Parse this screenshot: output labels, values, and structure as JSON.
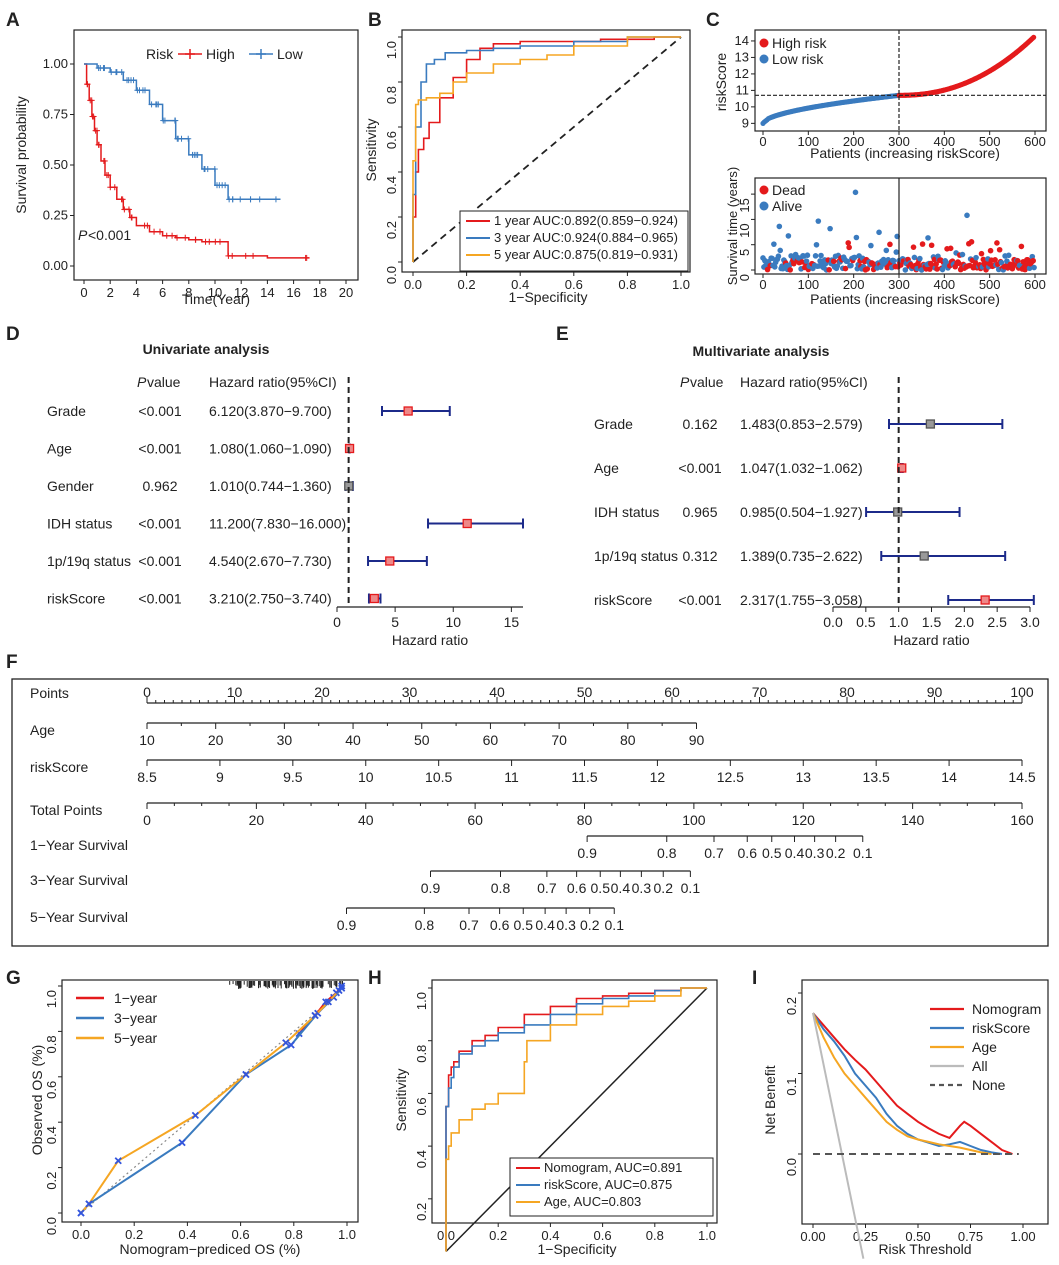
{
  "colors": {
    "red": "#e41a1c",
    "blue": "#3a7bbf",
    "orange": "#f5a623",
    "navy": "#1c2a8a",
    "gray": "#bbbbbb",
    "dark": "#222222"
  },
  "panels": {
    "A": "A",
    "B": "B",
    "C": "C",
    "D": "D",
    "E": "E",
    "F": "F",
    "G": "G",
    "H": "H",
    "I": "I"
  },
  "chart_data": [
    {
      "id": "A",
      "type": "line",
      "subtype": "kaplan-meier",
      "xlabel": "Time(Year)",
      "ylabel": "Survival probability",
      "xticks": [
        "0",
        "2",
        "4",
        "6",
        "8",
        "10",
        "12",
        "14",
        "16",
        "18",
        "20"
      ],
      "yticks": [
        "0.00",
        "0.25",
        "0.50",
        "0.75",
        "1.00"
      ],
      "xlim": [
        0,
        20
      ],
      "ylim": [
        0,
        1
      ],
      "legend_title": "Risk",
      "pvalue_label": "P",
      "pvalue_rest": "<0.001",
      "series": [
        {
          "name": "High",
          "color": "#e41a1c",
          "x": [
            0,
            0.2,
            0.4,
            0.6,
            0.8,
            1,
            1.3,
            1.6,
            2,
            2.5,
            3,
            3.5,
            4,
            5,
            6,
            7,
            8,
            9,
            10,
            11,
            12,
            14,
            17.2
          ],
          "y": [
            1,
            0.9,
            0.82,
            0.74,
            0.67,
            0.6,
            0.52,
            0.45,
            0.39,
            0.33,
            0.28,
            0.24,
            0.2,
            0.17,
            0.15,
            0.14,
            0.13,
            0.12,
            0.12,
            0.05,
            0.05,
            0.04,
            0.04
          ]
        },
        {
          "name": "Low",
          "color": "#3a7bbf",
          "x": [
            0,
            1,
            2,
            3,
            4,
            5,
            6,
            7,
            8,
            9,
            10,
            11,
            12,
            15
          ],
          "y": [
            1,
            0.98,
            0.96,
            0.92,
            0.87,
            0.8,
            0.72,
            0.63,
            0.55,
            0.48,
            0.4,
            0.33,
            0.33,
            0.33
          ]
        }
      ]
    },
    {
      "id": "B",
      "type": "line",
      "subtype": "roc",
      "xlabel": "1−Specificity",
      "ylabel": "Sensitivity",
      "xticks": [
        "0.0",
        "0.2",
        "0.4",
        "0.6",
        "0.8",
        "1.0"
      ],
      "yticks": [
        "0.0",
        "0.2",
        "0.4",
        "0.6",
        "0.8",
        "1.0"
      ],
      "series": [
        {
          "name": "1 year AUC:0.892(0.859−0.924)",
          "color": "#e41a1c",
          "x": [
            0,
            0.01,
            0.02,
            0.04,
            0.06,
            0.1,
            0.15,
            0.2,
            0.25,
            0.3,
            0.4,
            0.5,
            0.7,
            0.9,
            1
          ],
          "y": [
            0,
            0.2,
            0.4,
            0.5,
            0.55,
            0.62,
            0.73,
            0.82,
            0.9,
            0.95,
            0.97,
            0.98,
            0.98,
            0.99,
            1
          ]
        },
        {
          "name": "3 year AUC:0.924(0.884−0.965)",
          "color": "#3a7bbf",
          "x": [
            0,
            0.01,
            0.03,
            0.05,
            0.08,
            0.12,
            0.2,
            0.3,
            0.4,
            0.6,
            0.8,
            1
          ],
          "y": [
            0,
            0.3,
            0.6,
            0.8,
            0.88,
            0.9,
            0.93,
            0.94,
            0.95,
            0.96,
            0.98,
            1
          ]
        },
        {
          "name": "5 year AUC:0.875(0.819−0.931)",
          "color": "#f5a623",
          "x": [
            0,
            0.01,
            0.02,
            0.05,
            0.1,
            0.15,
            0.2,
            0.3,
            0.4,
            0.5,
            0.6,
            0.8,
            1
          ],
          "y": [
            0,
            0.45,
            0.7,
            0.72,
            0.73,
            0.75,
            0.8,
            0.84,
            0.88,
            0.9,
            0.92,
            0.96,
            1
          ]
        }
      ]
    },
    {
      "id": "C1",
      "type": "scatter",
      "ylabel": "riskScore",
      "xlabel": "Patients (increasing riskScore)",
      "xticks": [
        "0",
        "100",
        "200",
        "300",
        "400",
        "500",
        "600"
      ],
      "yticks": [
        "9",
        "10",
        "11",
        "12",
        "13",
        "14"
      ],
      "cutoff_x": 300,
      "cutoff_y": 10.7,
      "n": 600,
      "series": [
        {
          "name": "High risk",
          "color": "#e41a1c"
        },
        {
          "name": "Low risk",
          "color": "#3a7bbf"
        }
      ]
    },
    {
      "id": "C2",
      "type": "scatter",
      "ylabel": "Survival time (years)",
      "xlabel": "Patients (increasing riskScore)",
      "xticks": [
        "0",
        "100",
        "200",
        "300",
        "400",
        "500",
        "600"
      ],
      "yticks": [
        "0",
        "5",
        "10",
        "15"
      ],
      "cutoff_x": 300,
      "series": [
        {
          "name": "Dead",
          "color": "#e41a1c"
        },
        {
          "name": "Alive",
          "color": "#3a7bbf"
        }
      ]
    },
    {
      "id": "D",
      "type": "forest",
      "title": "Univariate analysis",
      "col_p": "P",
      "col_p_rest": " value",
      "col_hr": "Hazard ratio(95%CI)",
      "xlabel": "Hazard ratio",
      "xticks": [
        "0",
        "5",
        "10",
        "15"
      ],
      "xlim": [
        0,
        16
      ],
      "rows": [
        {
          "label": "Grade",
          "p": "<0.001",
          "hr_text": "6.120(3.870−9.700)",
          "hr": 6.12,
          "lo": 3.87,
          "hi": 9.7
        },
        {
          "label": "Age",
          "p": "<0.001",
          "hr_text": "1.080(1.060−1.090)",
          "hr": 1.08,
          "lo": 1.06,
          "hi": 1.09
        },
        {
          "label": "Gender",
          "p": "0.962",
          "hr_text": "1.010(0.744−1.360)",
          "hr": 1.01,
          "lo": 0.744,
          "hi": 1.36
        },
        {
          "label": "IDH status",
          "p": "<0.001",
          "hr_text": "11.200(7.830−16.000)",
          "hr": 11.2,
          "lo": 7.83,
          "hi": 16.0
        },
        {
          "label": "1p/19q status",
          "p": "<0.001",
          "hr_text": "4.540(2.670−7.730)",
          "hr": 4.54,
          "lo": 2.67,
          "hi": 7.73
        },
        {
          "label": "riskScore",
          "p": "<0.001",
          "hr_text": "3.210(2.750−3.740)",
          "hr": 3.21,
          "lo": 2.75,
          "hi": 3.74
        }
      ]
    },
    {
      "id": "E",
      "type": "forest",
      "title": "Multivariate analysis",
      "col_p": "P",
      "col_p_rest": " value",
      "col_hr": "Hazard ratio(95%CI)",
      "xlabel": "Hazard ratio",
      "xticks": [
        "0.0",
        "0.5",
        "1.0",
        "1.5",
        "2.0",
        "2.5",
        "3.0"
      ],
      "xlim": [
        0,
        3.0
      ],
      "rows": [
        {
          "label": "Grade",
          "p": "0.162",
          "hr_text": "1.483(0.853−2.579)",
          "hr": 1.483,
          "lo": 0.853,
          "hi": 2.579
        },
        {
          "label": "Age",
          "p": "<0.001",
          "hr_text": "1.047(1.032−1.062)",
          "hr": 1.047,
          "lo": 1.032,
          "hi": 1.062
        },
        {
          "label": "IDH status",
          "p": "0.965",
          "hr_text": "0.985(0.504−1.927)",
          "hr": 0.985,
          "lo": 0.504,
          "hi": 1.927
        },
        {
          "label": "1p/19q status",
          "p": "0.312",
          "hr_text": "1.389(0.735−2.622)",
          "hr": 1.389,
          "lo": 0.735,
          "hi": 2.622
        },
        {
          "label": "riskScore",
          "p": "<0.001",
          "hr_text": "2.317(1.755−3.058)",
          "hr": 2.317,
          "lo": 1.755,
          "hi": 3.058
        }
      ]
    },
    {
      "id": "F",
      "type": "nomogram",
      "rows": [
        {
          "label": "Points",
          "ticks": [
            "0",
            "10",
            "20",
            "30",
            "40",
            "50",
            "60",
            "70",
            "80",
            "90",
            "100"
          ],
          "start": 0,
          "end": 100
        },
        {
          "label": "Age",
          "ticks": [
            "10",
            "20",
            "30",
            "40",
            "50",
            "60",
            "70",
            "80",
            "90"
          ],
          "start": 0,
          "end": 62.8
        },
        {
          "label": "riskScore",
          "ticks": [
            "8.5",
            "9",
            "9.5",
            "10",
            "10.5",
            "11",
            "11.5",
            "12",
            "12.5",
            "13",
            "13.5",
            "14",
            "14.5"
          ],
          "start": 0,
          "end": 100
        },
        {
          "label": "Total Points",
          "ticks": [
            "0",
            "20",
            "40",
            "60",
            "80",
            "100",
            "120",
            "140",
            "160"
          ],
          "start": 0,
          "end": 100
        },
        {
          "label": "1−Year Survival",
          "ticks": [
            "0.9",
            "0.8",
            "0.7",
            "0.6",
            "0.5",
            "0.4",
            "0.3",
            "0.2",
            "0.1"
          ],
          "pos": [
            50.3,
            59.4,
            64.8,
            68.6,
            71.4,
            74.0,
            76.3,
            78.7,
            81.8
          ]
        },
        {
          "label": "3−Year Survival",
          "ticks": [
            "0.9",
            "0.8",
            "0.7",
            "0.6",
            "0.5",
            "0.4",
            "0.3",
            "0.2",
            "0.1"
          ],
          "pos": [
            32.4,
            40.4,
            45.7,
            49.1,
            51.8,
            54.1,
            56.5,
            59.0,
            62.1
          ]
        },
        {
          "label": "5−Year Survival",
          "ticks": [
            "0.9",
            "0.8",
            "0.7",
            "0.6",
            "0.5",
            "0.4",
            "0.3",
            "0.2",
            "0.1"
          ],
          "pos": [
            22.8,
            31.7,
            36.8,
            40.3,
            43.0,
            45.5,
            47.9,
            50.6,
            53.4
          ]
        }
      ]
    },
    {
      "id": "G",
      "type": "line",
      "subtype": "calibration",
      "xlabel": "Nomogram−prediced OS (%)",
      "ylabel": "Observed OS (%)",
      "xticks": [
        "0.0",
        "0.2",
        "0.4",
        "0.6",
        "0.8",
        "1.0"
      ],
      "yticks": [
        "0.0",
        "0.2",
        "0.4",
        "0.6",
        "0.8",
        "1.0"
      ],
      "series": [
        {
          "name": "1−year",
          "color": "#e41a1c",
          "x": [
            0.82,
            0.88,
            0.92,
            0.96,
            0.98
          ],
          "y": [
            0.79,
            0.87,
            0.93,
            0.97,
            1.0
          ]
        },
        {
          "name": "3−year",
          "color": "#3a7bbf",
          "x": [
            0,
            0.03,
            0.38,
            0.62,
            0.79,
            0.89,
            0.95,
            0.98
          ],
          "y": [
            0,
            0.04,
            0.31,
            0.61,
            0.74,
            0.88,
            0.95,
            0.99
          ]
        },
        {
          "name": "5−year",
          "color": "#f5a623",
          "x": [
            0,
            0.03,
            0.14,
            0.43,
            0.62,
            0.77,
            0.88,
            0.93,
            0.97
          ],
          "y": [
            0,
            0.04,
            0.23,
            0.43,
            0.61,
            0.75,
            0.87,
            0.93,
            0.98
          ]
        }
      ]
    },
    {
      "id": "H",
      "type": "line",
      "subtype": "roc",
      "xlabel": "1−Specificity",
      "ylabel": "Sensitivity",
      "xticks": [
        "0.0",
        "0.2",
        "0.4",
        "0.6",
        "0.8",
        "1.0"
      ],
      "yticks": [
        "0.2",
        "0.4",
        "0.6",
        "0.8",
        "1.0"
      ],
      "series": [
        {
          "name": "Nomogram, AUC=0.891",
          "color": "#e41a1c",
          "x": [
            0,
            0.01,
            0.02,
            0.03,
            0.05,
            0.1,
            0.15,
            0.2,
            0.3,
            0.4,
            0.5,
            0.6,
            0.7,
            0.8,
            0.9,
            1
          ],
          "y": [
            0,
            0.55,
            0.67,
            0.7,
            0.72,
            0.76,
            0.8,
            0.82,
            0.85,
            0.9,
            0.93,
            0.96,
            0.97,
            0.98,
            0.99,
            1
          ]
        },
        {
          "name": "riskScore, AUC=0.875",
          "color": "#3a7bbf",
          "x": [
            0,
            0.01,
            0.02,
            0.03,
            0.05,
            0.1,
            0.15,
            0.2,
            0.3,
            0.4,
            0.5,
            0.6,
            0.7,
            0.8,
            0.9,
            1
          ],
          "y": [
            0,
            0.55,
            0.62,
            0.66,
            0.7,
            0.75,
            0.78,
            0.8,
            0.83,
            0.86,
            0.9,
            0.94,
            0.96,
            0.97,
            0.99,
            1
          ]
        },
        {
          "name": "Age, AUC=0.803",
          "color": "#f5a623",
          "x": [
            0,
            0.01,
            0.02,
            0.05,
            0.1,
            0.15,
            0.2,
            0.3,
            0.31,
            0.4,
            0.5,
            0.6,
            0.7,
            0.8,
            0.9,
            1
          ],
          "y": [
            0,
            0.35,
            0.4,
            0.45,
            0.5,
            0.54,
            0.56,
            0.6,
            0.72,
            0.8,
            0.86,
            0.9,
            0.93,
            0.95,
            0.97,
            1
          ]
        }
      ]
    },
    {
      "id": "I",
      "type": "line",
      "subtype": "decision-curve",
      "xlabel": "Risk Threshold",
      "ylabel": "Net Benefit",
      "xticks": [
        "0.00",
        "0.25",
        "0.50",
        "0.75",
        "1.00"
      ],
      "yticks": [
        "0.0",
        "0.1",
        "0.2"
      ],
      "series": [
        {
          "name": "Nomogram",
          "color": "#e41a1c",
          "x": [
            0,
            0.05,
            0.1,
            0.15,
            0.2,
            0.25,
            0.3,
            0.35,
            0.4,
            0.45,
            0.5,
            0.55,
            0.6,
            0.65,
            0.7,
            0.72,
            0.75,
            0.8,
            0.85,
            0.9,
            0.95
          ],
          "y": [
            0.175,
            0.16,
            0.145,
            0.13,
            0.117,
            0.105,
            0.09,
            0.075,
            0.06,
            0.05,
            0.04,
            0.032,
            0.025,
            0.02,
            0.035,
            0.04,
            0.035,
            0.025,
            0.015,
            0.005,
            0
          ]
        },
        {
          "name": "riskScore",
          "color": "#3a7bbf",
          "x": [
            0,
            0.05,
            0.1,
            0.15,
            0.2,
            0.25,
            0.3,
            0.35,
            0.4,
            0.45,
            0.5,
            0.55,
            0.6,
            0.65,
            0.7,
            0.75,
            0.8,
            0.85,
            0.9
          ],
          "y": [
            0.175,
            0.155,
            0.14,
            0.122,
            0.1,
            0.085,
            0.07,
            0.05,
            0.035,
            0.025,
            0.018,
            0.014,
            0.01,
            0.012,
            0.015,
            0.01,
            0.005,
            0.002,
            0
          ]
        },
        {
          "name": "Age",
          "color": "#f5a623",
          "x": [
            0,
            0.05,
            0.1,
            0.15,
            0.2,
            0.25,
            0.3,
            0.35,
            0.4,
            0.45,
            0.5,
            0.55,
            0.6,
            0.65,
            0.7,
            0.75,
            0.8,
            0.85
          ],
          "y": [
            0.175,
            0.145,
            0.12,
            0.1,
            0.085,
            0.07,
            0.055,
            0.04,
            0.03,
            0.022,
            0.018,
            0.015,
            0.012,
            0.01,
            0.008,
            0.005,
            0.002,
            0
          ]
        },
        {
          "name": "All",
          "color": "#bbbbbb",
          "x": [
            0,
            0.24
          ],
          "y": [
            0.175,
            -0.13
          ]
        },
        {
          "name": "None",
          "color": "#555555",
          "x": [
            0,
            0.98
          ],
          "y": [
            0,
            0
          ]
        }
      ]
    }
  ]
}
